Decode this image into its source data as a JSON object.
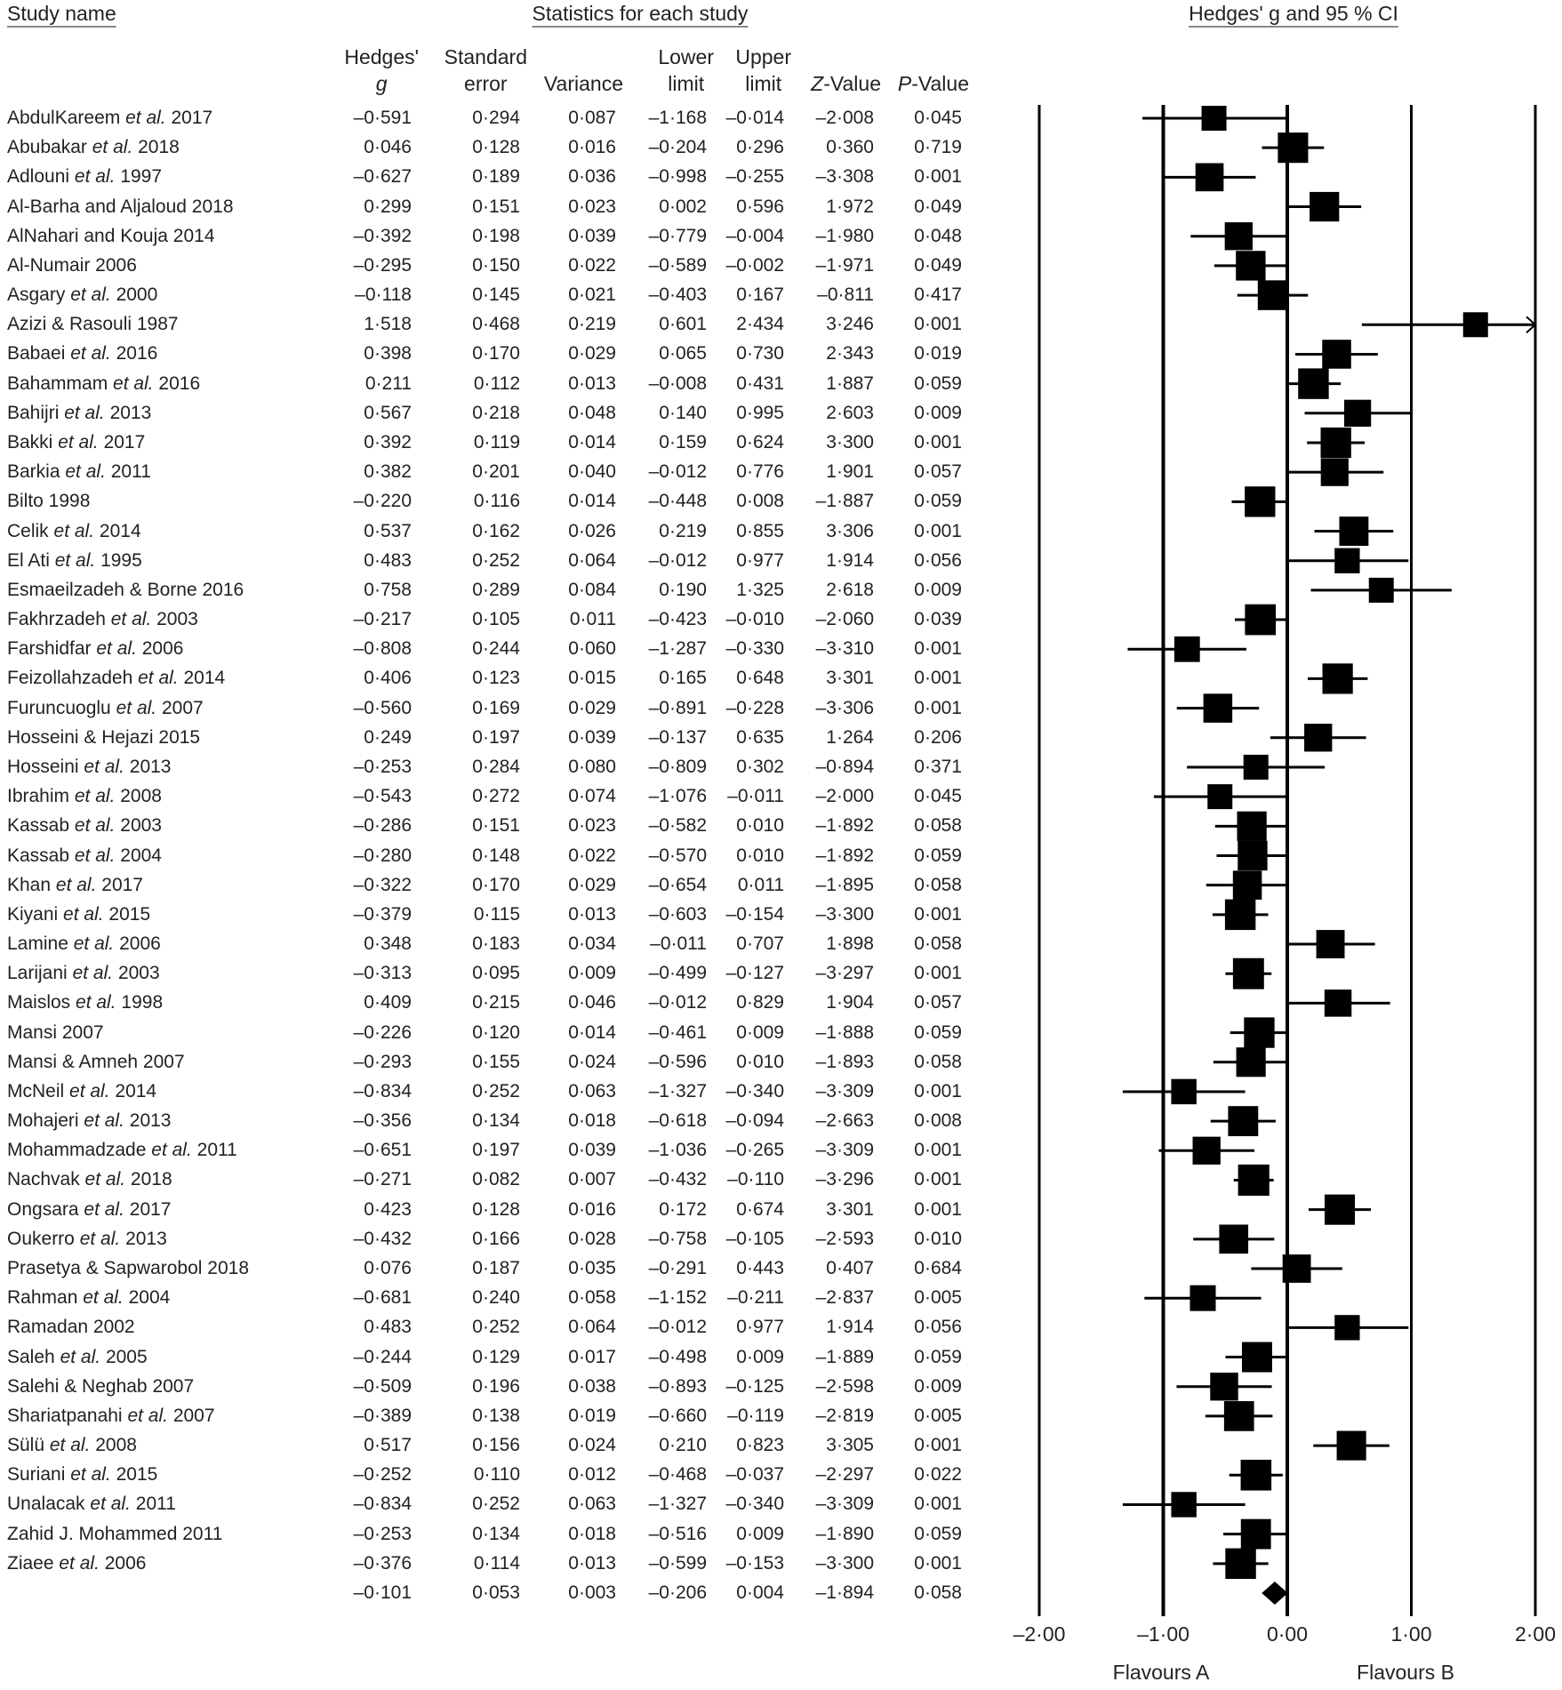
{
  "headers": {
    "study_name": "Study name",
    "stats": "Statistics for each study",
    "plot": "Hedges' g and 95 % CI",
    "columns": [
      {
        "line1": "Hedges'",
        "line2": "g"
      },
      {
        "line1": "Standard",
        "line2": "error"
      },
      {
        "line1": "",
        "line2": "Variance"
      },
      {
        "line1": "Lower",
        "line2": "limit"
      },
      {
        "line1": "Upper",
        "line2": "limit"
      },
      {
        "line1": "",
        "line2": "Z-Value"
      },
      {
        "line1": "",
        "line2": "P-Value"
      }
    ]
  },
  "chart_data": {
    "type": "forest",
    "title": "Hedges' g and 95 % CI",
    "xlim": [
      -2,
      2
    ],
    "xticks": [
      "–2·00",
      "–1·00",
      "0·00",
      "1·00",
      "2·00"
    ],
    "xtick_values": [
      -2,
      -1,
      0,
      1,
      2
    ],
    "xlabel_left": "Flavours A",
    "xlabel_right": "Flavours B",
    "rows": [
      [
        "AbdulKareem",
        "et al.",
        "2017",
        "–0·591",
        "0·294",
        "0·087",
        "–1·168",
        "–0·014",
        "–2·008",
        "0·045"
      ],
      [
        "Abubakar",
        "et al.",
        "2018",
        "0·046",
        "0·128",
        "0·016",
        "–0·204",
        "0·296",
        "0·360",
        "0·719"
      ],
      [
        "Adlouni",
        "et al.",
        "1997",
        "–0·627",
        "0·189",
        "0·036",
        "–0·998",
        "–0·255",
        "–3·308",
        "0·001"
      ],
      [
        "Al-Barha and Aljaloud 2018",
        "",
        "",
        "0·299",
        "0·151",
        "0·023",
        "0·002",
        "0·596",
        "1·972",
        "0·049"
      ],
      [
        "AlNahari and Kouja 2014",
        "",
        "",
        "–0·392",
        "0·198",
        "0·039",
        "–0·779",
        "–0·004",
        "–1·980",
        "0·048"
      ],
      [
        "Al-Numair 2006",
        "",
        "",
        "–0·295",
        "0·150",
        "0·022",
        "–0·589",
        "–0·002",
        "–1·971",
        "0·049"
      ],
      [
        "Asgary",
        "et al.",
        "2000",
        "–0·118",
        "0·145",
        "0·021",
        "–0·403",
        "0·167",
        "–0·811",
        "0·417"
      ],
      [
        "Azizi & Rasouli 1987",
        "",
        "",
        "1·518",
        "0·468",
        "0·219",
        "0·601",
        "2·434",
        "3·246",
        "0·001"
      ],
      [
        "Babaei",
        "et al.",
        "2016",
        "0·398",
        "0·170",
        "0·029",
        "0·065",
        "0·730",
        "2·343",
        "0·019"
      ],
      [
        "Bahammam",
        "et al.",
        "2016",
        "0·211",
        "0·112",
        "0·013",
        "–0·008",
        "0·431",
        "1·887",
        "0·059"
      ],
      [
        "Bahijri",
        "et al.",
        "2013",
        "0·567",
        "0·218",
        "0·048",
        "0·140",
        "0·995",
        "2·603",
        "0·009"
      ],
      [
        "Bakki",
        "et al.",
        "2017",
        "0·392",
        "0·119",
        "0·014",
        "0·159",
        "0·624",
        "3·300",
        "0·001"
      ],
      [
        "Barkia",
        "et al.",
        "2011",
        "0·382",
        "0·201",
        "0·040",
        "–0·012",
        "0·776",
        "1·901",
        "0·057"
      ],
      [
        "Bilto 1998",
        "",
        "",
        "–0·220",
        "0·116",
        "0·014",
        "–0·448",
        "0·008",
        "–1·887",
        "0·059"
      ],
      [
        "Celik",
        "et al.",
        "2014",
        "0·537",
        "0·162",
        "0·026",
        "0·219",
        "0·855",
        "3·306",
        "0·001"
      ],
      [
        "El Ati",
        "et al.",
        "1995",
        "0·483",
        "0·252",
        "0·064",
        "–0·012",
        "0·977",
        "1·914",
        "0·056"
      ],
      [
        "Esmaeilzadeh & Borne 2016",
        "",
        "",
        "0·758",
        "0·289",
        "0·084",
        "0·190",
        "1·325",
        "2·618",
        "0·009"
      ],
      [
        "Fakhrzadeh",
        "et al.",
        "2003",
        "–0·217",
        "0·105",
        "0·011",
        "–0·423",
        "–0·010",
        "–2·060",
        "0·039"
      ],
      [
        "Farshidfar",
        "et al.",
        "2006",
        "–0·808",
        "0·244",
        "0·060",
        "–1·287",
        "–0·330",
        "–3·310",
        "0·001"
      ],
      [
        "Feizollahzadeh",
        "et al.",
        "2014",
        "0·406",
        "0·123",
        "0·015",
        "0·165",
        "0·648",
        "3·301",
        "0·001"
      ],
      [
        "Furuncuoglu",
        "et al.",
        "2007",
        "–0·560",
        "0·169",
        "0·029",
        "–0·891",
        "–0·228",
        "–3·306",
        "0·001"
      ],
      [
        "Hosseini & Hejazi 2015",
        "",
        "",
        "0·249",
        "0·197",
        "0·039",
        "–0·137",
        "0·635",
        "1·264",
        "0·206"
      ],
      [
        "Hosseini",
        "et al.",
        "2013",
        "–0·253",
        "0·284",
        "0·080",
        "–0·809",
        "0·302",
        "–0·894",
        "0·371"
      ],
      [
        "Ibrahim",
        "et al.",
        "2008",
        "–0·543",
        "0·272",
        "0·074",
        "–1·076",
        "–0·011",
        "–2·000",
        "0·045"
      ],
      [
        "Kassab",
        "et al.",
        "2003",
        "–0·286",
        "0·151",
        "0·023",
        "–0·582",
        "0·010",
        "–1·892",
        "0·058"
      ],
      [
        "Kassab",
        "et al.",
        "2004",
        "–0·280",
        "0·148",
        "0·022",
        "–0·570",
        "0·010",
        "–1·892",
        "0·059"
      ],
      [
        "Khan",
        "et al.",
        "2017",
        "–0·322",
        "0·170",
        "0·029",
        "–0·654",
        "0·011",
        "–1·895",
        "0·058"
      ],
      [
        "Kiyani",
        "et al.",
        "2015",
        "–0·379",
        "0·115",
        "0·013",
        "–0·603",
        "–0·154",
        "–3·300",
        "0·001"
      ],
      [
        "Lamine",
        "et al.",
        "2006",
        "0·348",
        "0·183",
        "0·034",
        "–0·011",
        "0·707",
        "1·898",
        "0·058"
      ],
      [
        "Larijani",
        "et al.",
        "2003",
        "–0·313",
        "0·095",
        "0·009",
        "–0·499",
        "–0·127",
        "–3·297",
        "0·001"
      ],
      [
        "Maislos",
        "et al.",
        "1998",
        "0·409",
        "0·215",
        "0·046",
        "–0·012",
        "0·829",
        "1·904",
        "0·057"
      ],
      [
        "Mansi 2007",
        "",
        "",
        "–0·226",
        "0·120",
        "0·014",
        "–0·461",
        "0·009",
        "–1·888",
        "0·059"
      ],
      [
        "Mansi & Amneh 2007",
        "",
        "",
        "–0·293",
        "0·155",
        "0·024",
        "–0·596",
        "0·010",
        "–1·893",
        "0·058"
      ],
      [
        "McNeil",
        "et al.",
        "2014",
        "–0·834",
        "0·252",
        "0·063",
        "–1·327",
        "–0·340",
        "–3·309",
        "0·001"
      ],
      [
        "Mohajeri",
        "et al.",
        "2013",
        "–0·356",
        "0·134",
        "0·018",
        "–0·618",
        "–0·094",
        "–2·663",
        "0·008"
      ],
      [
        "Mohammadzade",
        "et al.",
        "2011",
        "–0·651",
        "0·197",
        "0·039",
        "–1·036",
        "–0·265",
        "–3·309",
        "0·001"
      ],
      [
        "Nachvak",
        "et al.",
        "2018",
        "–0·271",
        "0·082",
        "0·007",
        "–0·432",
        "–0·110",
        "–3·296",
        "0·001"
      ],
      [
        "Ongsara",
        "et al.",
        "2017",
        "0·423",
        "0·128",
        "0·016",
        "0·172",
        "0·674",
        "3·301",
        "0·001"
      ],
      [
        "Oukerro",
        "et al.",
        "2013",
        "–0·432",
        "0·166",
        "0·028",
        "–0·758",
        "–0·105",
        "–2·593",
        "0·010"
      ],
      [
        "Prasetya & Sapwarobol 2018",
        "",
        "",
        "0·076",
        "0·187",
        "0·035",
        "–0·291",
        "0·443",
        "0·407",
        "0·684"
      ],
      [
        "Rahman",
        "et al.",
        "2004",
        "–0·681",
        "0·240",
        "0·058",
        "–1·152",
        "–0·211",
        "–2·837",
        "0·005"
      ],
      [
        "Ramadan 2002",
        "",
        "",
        "0·483",
        "0·252",
        "0·064",
        "–0·012",
        "0·977",
        "1·914",
        "0·056"
      ],
      [
        "Saleh",
        "et al.",
        "2005",
        "–0·244",
        "0·129",
        "0·017",
        "–0·498",
        "0·009",
        "–1·889",
        "0·059"
      ],
      [
        "Salehi & Neghab 2007",
        "",
        "",
        "–0·509",
        "0·196",
        "0·038",
        "–0·893",
        "–0·125",
        "–2·598",
        "0·009"
      ],
      [
        "Shariatpanahi",
        "et al.",
        "2007",
        "–0·389",
        "0·138",
        "0·019",
        "–0·660",
        "–0·119",
        "–2·819",
        "0·005"
      ],
      [
        "Sülü",
        "et al.",
        "2008",
        "0·517",
        "0·156",
        "0·024",
        "0·210",
        "0·823",
        "3·305",
        "0·001"
      ],
      [
        "Suriani",
        "et al.",
        "2015",
        "–0·252",
        "0·110",
        "0·012",
        "–0·468",
        "–0·037",
        "–2·297",
        "0·022"
      ],
      [
        "Unalacak",
        "et al.",
        "2011",
        "–0·834",
        "0·252",
        "0·063",
        "–1·327",
        "–0·340",
        "–3·309",
        "0·001"
      ],
      [
        "Zahid J. Mohammed 2011",
        "",
        "",
        "–0·253",
        "0·134",
        "0·018",
        "–0·516",
        "0·009",
        "–1·890",
        "0·059"
      ],
      [
        "Ziaee",
        "et al.",
        "2006",
        "–0·376",
        "0·114",
        "0·013",
        "–0·599",
        "–0·153",
        "–3·300",
        "0·001"
      ]
    ],
    "summary": [
      "–0·101",
      "0·053",
      "0·003",
      "–0·206",
      "0·004",
      "–1·894",
      "0·058"
    ]
  }
}
